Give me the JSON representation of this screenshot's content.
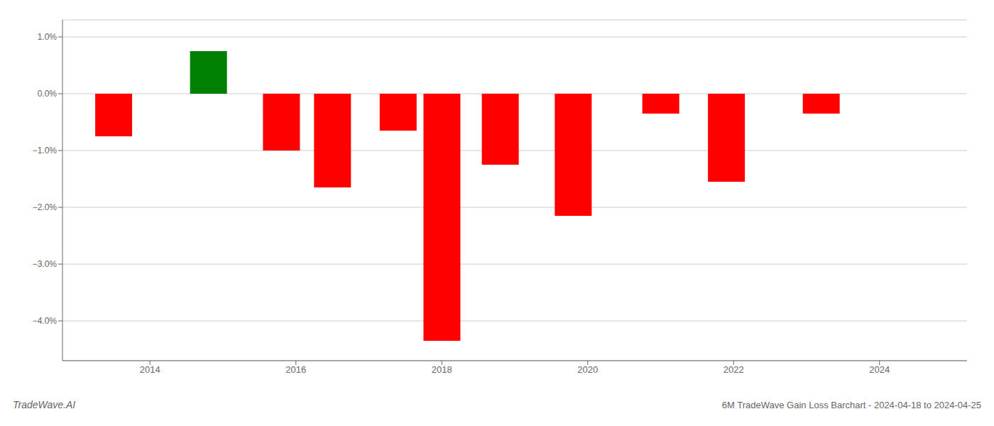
{
  "chart_data": {
    "type": "bar",
    "title": "6M TradeWave Gain Loss Barchart - 2024-04-18 to 2024-04-25",
    "annotations": [
      "TradeWave.AI"
    ],
    "x": [
      2013.5,
      2014.8,
      2015.8,
      2016.5,
      2017.4,
      2018.0,
      2018.8,
      2019.8,
      2021.0,
      2021.9,
      2023.2
    ],
    "values": [
      -0.0075,
      0.0075,
      -0.01,
      -0.0165,
      -0.0065,
      -0.0435,
      -0.0125,
      -0.0215,
      -0.0035,
      -0.0155,
      -0.0035
    ],
    "colors": [
      "#ff0000",
      "#008000",
      "#ff0000",
      "#ff0000",
      "#ff0000",
      "#ff0000",
      "#ff0000",
      "#ff0000",
      "#ff0000",
      "#ff0000",
      "#ff0000"
    ],
    "xlim": [
      2012.8,
      2025.2
    ],
    "xticks": [
      2014,
      2016,
      2018,
      2020,
      2022,
      2024
    ],
    "ylim": [
      -0.047,
      0.013
    ],
    "yticks": [
      {
        "value": -0.04,
        "label": "−4.0%"
      },
      {
        "value": -0.03,
        "label": "−3.0%"
      },
      {
        "value": -0.02,
        "label": "−2.0%"
      },
      {
        "value": -0.01,
        "label": "−1.0%"
      },
      {
        "value": 0.0,
        "label": "0.0%"
      },
      {
        "value": 0.01,
        "label": "1.0%"
      }
    ],
    "grid": true
  }
}
